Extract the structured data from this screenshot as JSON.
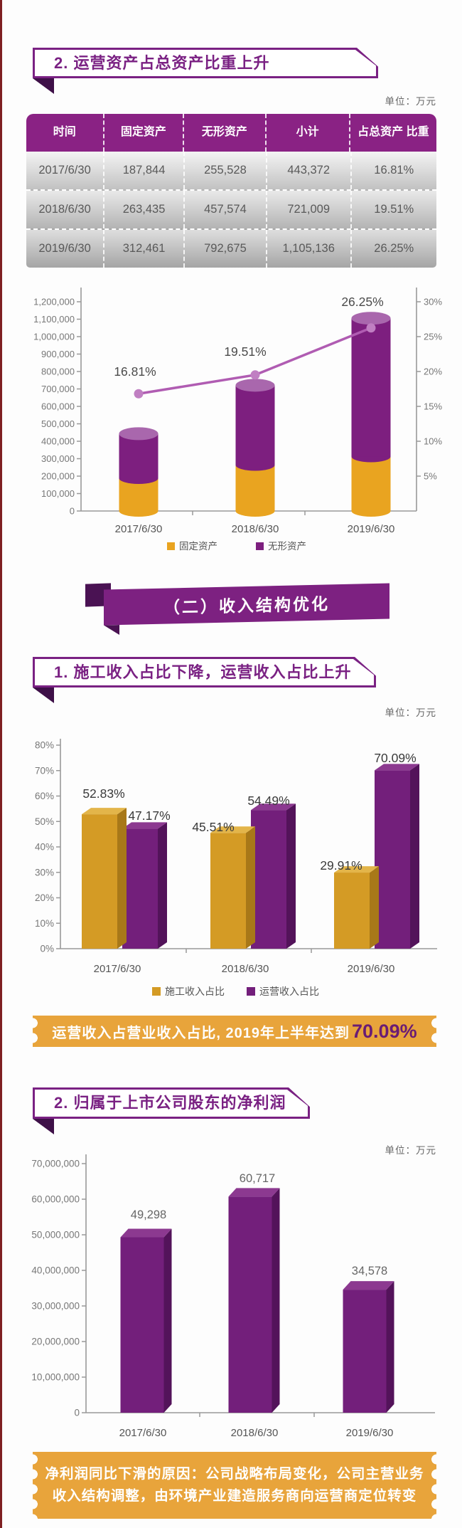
{
  "colors": {
    "purple": "#7A2183",
    "purple_bar": "#7D1F7F",
    "purple_cap": "#A967AD",
    "gold": "#E9A420",
    "line": "#B05CB2",
    "dot": "#C07FC2",
    "table_header": "#8A2284",
    "ribbon_orange": "#E8A43B",
    "highlight_purple": "#6A1C74",
    "fold_dark": "#3E1048",
    "edge_red": "#7E2022"
  },
  "section1": {
    "banner": "2. 运营资产占总资产比重上升",
    "unit": "单位：万元",
    "table": {
      "headers": [
        "时间",
        "固定资产",
        "无形资产",
        "小计",
        "占总资产 比重"
      ],
      "rows": [
        [
          "2017/6/30",
          "187,844",
          "255,528",
          "443,372",
          "16.81%"
        ],
        [
          "2018/6/30",
          "263,435",
          "457,574",
          "721,009",
          "19.51%"
        ],
        [
          "2019/6/30",
          "312,461",
          "792,675",
          "1,105,136",
          "26.25%"
        ]
      ]
    }
  },
  "section_banner": "（二）收入结构优化",
  "section2": {
    "banner": "1. 施工收入占比下降，运营收入占比上升",
    "unit": "单位：万元",
    "ribbon": {
      "prefix": "运营收入占营业收入占比, 2019年上半年达到",
      "highlight": "70.09%"
    }
  },
  "section3": {
    "banner": "2. 归属于上市公司股东的净利润",
    "unit": "单位：万元",
    "ribbon_line1": "净利润同比下滑的原因：公司战略布局变化，公司主营业务",
    "ribbon_line2": "收入结构调整，由环境产业建造服务商向运营商定位转变"
  },
  "chart_data": [
    {
      "type": "bar",
      "subtype": "stacked-cylinder-with-line",
      "categories": [
        "2017/6/30",
        "2018/6/30",
        "2019/6/30"
      ],
      "series": [
        {
          "name": "固定资产",
          "color": "#E9A420",
          "values": [
            187844,
            263435,
            312461
          ]
        },
        {
          "name": "无形资产",
          "color": "#7D1F7F",
          "cap_color": "#A967AD",
          "values": [
            255528,
            457574,
            792675
          ]
        }
      ],
      "totals": [
        443372,
        721009,
        1105136
      ],
      "line_series": {
        "name": "占总资产比重",
        "color": "#B05CB2",
        "dot_color": "#C07FC2",
        "values": [
          16.81,
          19.51,
          26.25
        ],
        "labels": [
          "16.81%",
          "19.51%",
          "26.25%"
        ]
      },
      "left_axis": {
        "min": 0,
        "max": 1200000,
        "step": 100000
      },
      "right_axis": {
        "min": 0,
        "max": 30,
        "step": 5,
        "suffix": "%",
        "first_label": 5
      },
      "legend_position": "bottom",
      "grid": false
    },
    {
      "type": "bar",
      "subtype": "grouped-3d",
      "categories": [
        "2017/6/30",
        "2018/6/30",
        "2019/6/30"
      ],
      "series": [
        {
          "name": "施工收入占比",
          "values": [
            52.83,
            45.51,
            29.91
          ],
          "labels": [
            "52.83%",
            "45.51%",
            "29.91%"
          ],
          "color": "#D49B25",
          "top_color": "#E3B54A",
          "side_color": "#A87818"
        },
        {
          "name": "运营收入占比",
          "values": [
            47.17,
            54.49,
            70.09
          ],
          "labels": [
            "47.17%",
            "54.49%",
            "70.09%"
          ],
          "color": "#731F7B",
          "top_color": "#8C3990",
          "side_color": "#53135A"
        }
      ],
      "y_axis": {
        "min": 0,
        "max": 80,
        "step": 10,
        "suffix": "%"
      },
      "legend_position": "bottom",
      "grid": false
    },
    {
      "type": "bar",
      "subtype": "3d",
      "categories": [
        "2017/6/30",
        "2018/6/30",
        "2019/6/30"
      ],
      "values": [
        49298000,
        60717000,
        34578000
      ],
      "labels": [
        "49,298",
        "60,717",
        "34,578"
      ],
      "color": "#731F7B",
      "top_color": "#8C3990",
      "side_color": "#53135A",
      "y_axis": {
        "min": 0,
        "max": 70000000,
        "step": 10000000
      },
      "grid": false
    }
  ]
}
